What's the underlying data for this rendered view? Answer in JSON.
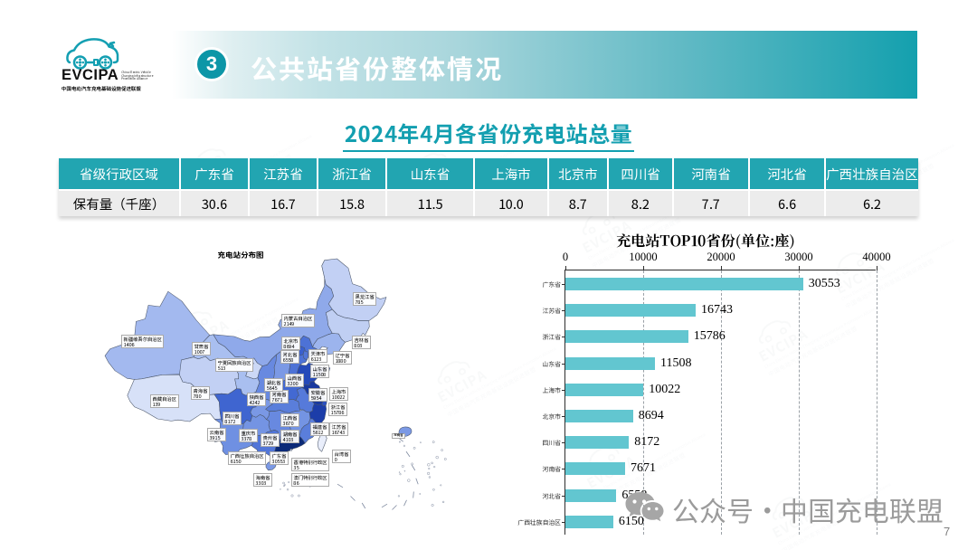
{
  "logo": {
    "brand": "EVCIPA",
    "tagline_lines": [
      "China Electric Vehicle",
      "Charging Infrastructure",
      "Promotion Alliance"
    ],
    "cjk_name": "中国电动汽车充电基础设施促进联盟"
  },
  "header": {
    "badge": "3",
    "title": "公共站省份整体情况"
  },
  "section_title": "2024年4月各省份充电站总量",
  "table": {
    "row_header": "省级行政区域",
    "row_label": "保有量（千座）",
    "columns": [
      "广东省",
      "江苏省",
      "浙江省",
      "山东省",
      "上海市",
      "北京市",
      "四川省",
      "河南省",
      "河北省",
      "广西壮族自治区"
    ],
    "values": [
      "30.6",
      "16.7",
      "15.8",
      "11.5",
      "10.0",
      "8.7",
      "8.2",
      "7.7",
      "6.6",
      "6.2"
    ]
  },
  "map": {
    "title": "充电站分布图",
    "inset_label": "海南省",
    "provinces": [
      {
        "name": "新疆维吾尔自治区",
        "value": 1406,
        "color": "#a3b9ef"
      },
      {
        "name": "西藏自治区",
        "value": 139,
        "color": "#d7e1f8"
      },
      {
        "name": "青海省",
        "value": 780,
        "color": "#c2d0f4"
      },
      {
        "name": "甘肃省",
        "value": 1007,
        "color": "#a9bff0"
      },
      {
        "name": "内蒙古自治区",
        "value": 2149,
        "color": "#8fa9ea"
      },
      {
        "name": "黑龙江省",
        "value": 785,
        "color": "#c2d0f4"
      },
      {
        "name": "吉林省",
        "value": 803,
        "color": "#c0cff3"
      },
      {
        "name": "辽宁省",
        "value": 1880,
        "color": "#9cb4ed"
      },
      {
        "name": "宁夏回族自治区",
        "value": 513,
        "color": "#ccd8f6"
      },
      {
        "name": "陕西省",
        "value": 4242,
        "color": "#6889e0"
      },
      {
        "name": "山西省",
        "value": 3200,
        "color": "#7b99e5"
      },
      {
        "name": "河北省",
        "value": 6558,
        "color": "#4d72d6"
      },
      {
        "name": "山东省",
        "value": 11508,
        "color": "#2549b9"
      },
      {
        "name": "河南省",
        "value": 7671,
        "color": "#4369d2"
      },
      {
        "name": "湖北省",
        "value": 5645,
        "color": "#5a7edb"
      },
      {
        "name": "安徽省",
        "value": 5954,
        "color": "#567ada"
      },
      {
        "name": "江苏省",
        "value": 16743,
        "color": "#19399f"
      },
      {
        "name": "浙江省",
        "value": 15786,
        "color": "#1c3da9"
      },
      {
        "name": "江西省",
        "value": 3670,
        "color": "#7494e3"
      },
      {
        "name": "福建省",
        "value": 5612,
        "color": "#5a7edb"
      },
      {
        "name": "湖南省",
        "value": 4103,
        "color": "#6889e0"
      },
      {
        "name": "贵州省",
        "value": 3729,
        "color": "#7494e3"
      },
      {
        "name": "四川省",
        "value": 8172,
        "color": "#3f65d0"
      },
      {
        "name": "云南省",
        "value": 3915,
        "color": "#6f90e2"
      },
      {
        "name": "广西壮族自治区",
        "value": 6150,
        "color": "#5276d8"
      },
      {
        "name": "广东省",
        "value": 30553,
        "color": "#0b2a78"
      },
      {
        "name": "海南省",
        "value": 3303,
        "color": "#7b99e5"
      },
      {
        "name": "台湾省",
        "value": 0,
        "color": "#e9eefb"
      },
      {
        "name": "重庆市",
        "value": 3378,
        "color": "#7a98e5"
      },
      {
        "name": "北京市",
        "value": 8694,
        "color": "#3a60ce"
      },
      {
        "name": "天津市",
        "value": 6123,
        "color": "#5276d8"
      },
      {
        "name": "上海市",
        "value": 10022,
        "color": "#2b50c0"
      },
      {
        "name": "香港特别行政区",
        "value": 35,
        "color": "#dce5f9"
      },
      {
        "name": "澳门特别行政区",
        "value": 86,
        "color": "#dce5f9"
      }
    ]
  },
  "chart_data": {
    "type": "bar",
    "orientation": "horizontal",
    "title": "充电站TOP10省份(单位:座)",
    "categories": [
      "广东省",
      "江苏省",
      "浙江省",
      "山东省",
      "上海市",
      "北京市",
      "四川省",
      "河南省",
      "河北省",
      "广西壮族自治区"
    ],
    "values": [
      30553,
      16743,
      15786,
      11508,
      10022,
      8694,
      8172,
      7671,
      6558,
      6150
    ],
    "xlim": [
      0,
      40000
    ],
    "xticks": [
      0,
      10000,
      20000,
      30000,
      40000
    ],
    "bar_color": "#62c6d0",
    "grid": "dashed-vertical",
    "legend": "none"
  },
  "footer": {
    "watermark_text": "公众号·中国充电联盟",
    "page_number": "7"
  },
  "colors": {
    "accent_teal": "#14a0ae",
    "table_header": "#22a5b1",
    "section_title": "#139fb0",
    "bar_fill": "#62c6d0"
  }
}
